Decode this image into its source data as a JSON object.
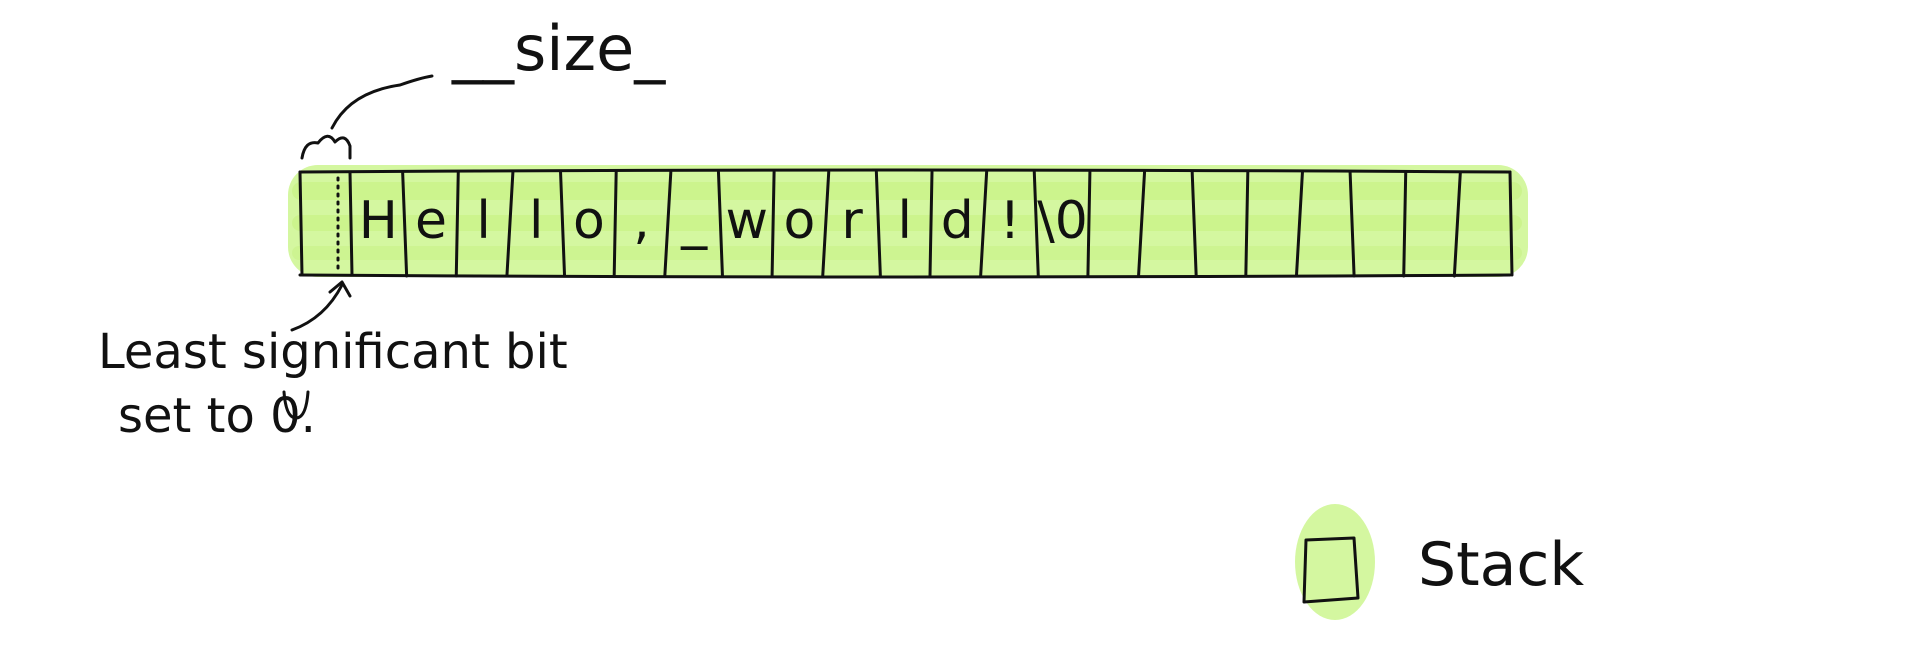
{
  "diagram": {
    "size_label": "__size_",
    "annotation_line1": "Least significant bit",
    "annotation_line2": "set to 0.",
    "cells": [
      "H",
      "e",
      "l",
      "l",
      "o",
      ",",
      "_",
      "w",
      "o",
      "r",
      "l",
      "d",
      "!",
      "\\0",
      "",
      "",
      "",
      "",
      "",
      "",
      "",
      ""
    ],
    "legend_label": "Stack",
    "highlight_color": "#d4f7a0",
    "ink_color": "#111111"
  }
}
